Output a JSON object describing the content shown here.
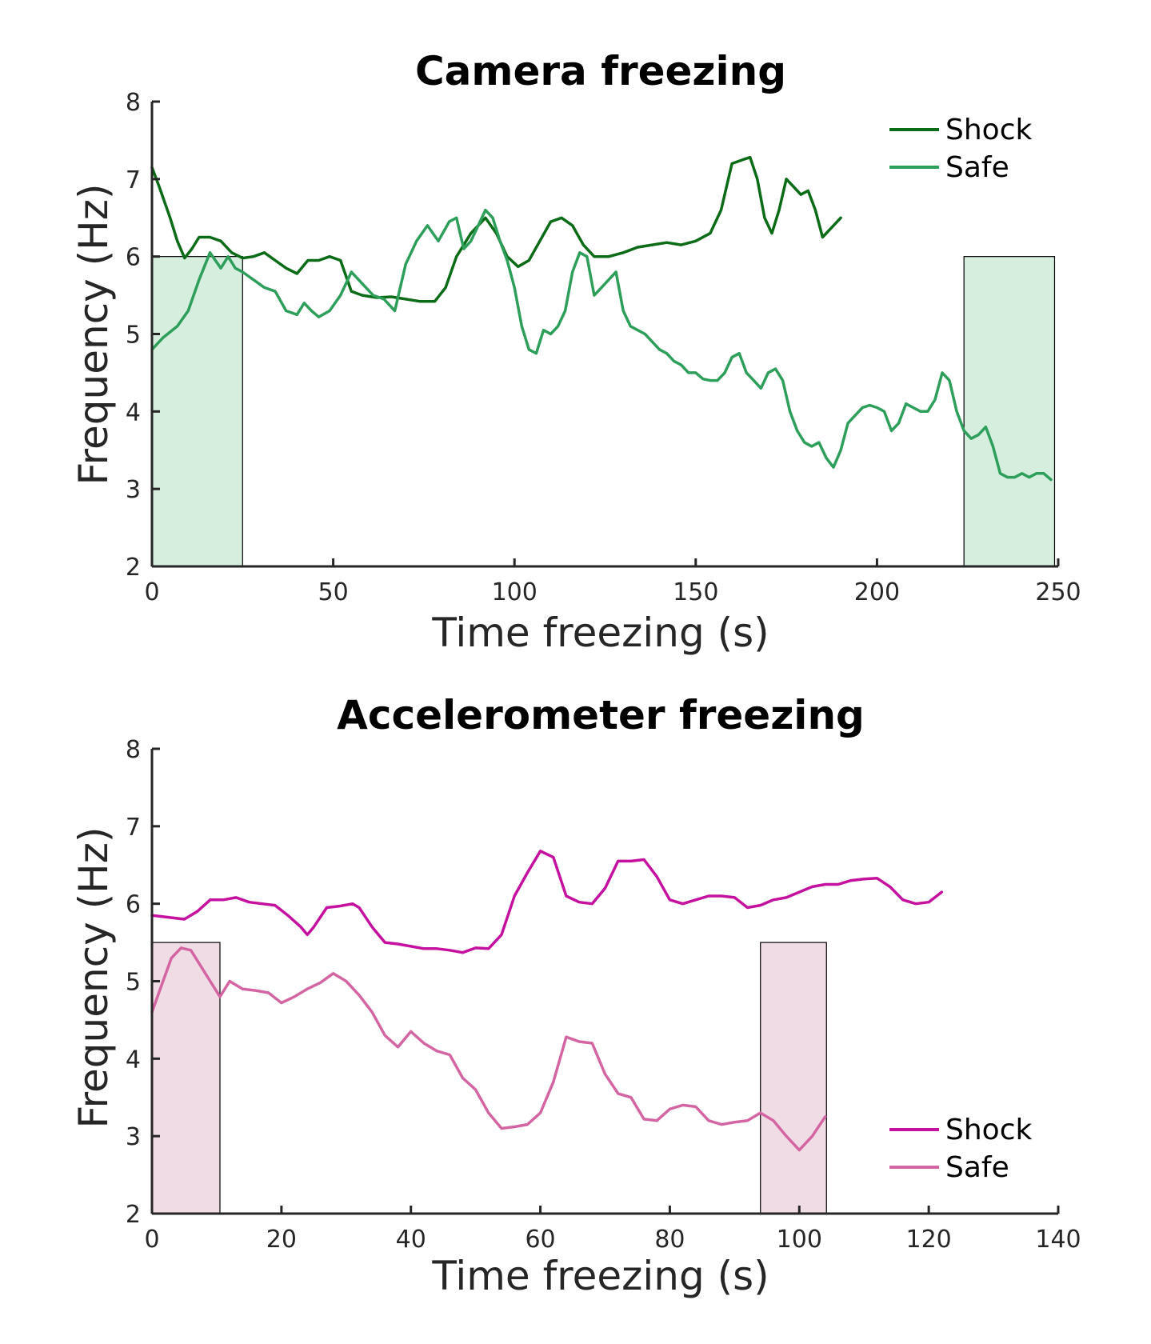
{
  "chart_data": [
    {
      "type": "line",
      "title": "Camera freezing",
      "xlabel": "Time freezing (s)",
      "ylabel": "Frequency (Hz)",
      "xlim": [
        0,
        250
      ],
      "ylim": [
        2,
        8
      ],
      "xticks": [
        0,
        50,
        100,
        150,
        200,
        250
      ],
      "yticks": [
        2,
        3,
        4,
        5,
        6,
        7,
        8
      ],
      "grid": false,
      "legend": "top-right",
      "shaded_regions": [
        {
          "x": [
            0,
            25
          ],
          "y": [
            2,
            6
          ],
          "color": "#d5eede"
        },
        {
          "x": [
            224,
            249
          ],
          "y": [
            2,
            6
          ],
          "color": "#d5eede"
        }
      ],
      "series": [
        {
          "name": "Shock",
          "color": "#0b6b16",
          "x": [
            0,
            2,
            5,
            7,
            9,
            11,
            13,
            16,
            19,
            22,
            25,
            28,
            31,
            34,
            37,
            40,
            43,
            46,
            49,
            52,
            55,
            58,
            62,
            66,
            70,
            74,
            78,
            81,
            84,
            88,
            92,
            95,
            98,
            101,
            104,
            107,
            110,
            113,
            116,
            119,
            122,
            126,
            130,
            134,
            138,
            142,
            146,
            150,
            154,
            157,
            160,
            163,
            165,
            167,
            169,
            171,
            173,
            175,
            177,
            179,
            181,
            183,
            185,
            187,
            190
          ],
          "values": [
            7.15,
            6.9,
            6.5,
            6.2,
            5.98,
            6.1,
            6.25,
            6.25,
            6.2,
            6.05,
            5.98,
            6.0,
            6.05,
            5.95,
            5.85,
            5.78,
            5.95,
            5.95,
            6.0,
            5.95,
            5.55,
            5.5,
            5.47,
            5.48,
            5.45,
            5.42,
            5.42,
            5.6,
            6.0,
            6.3,
            6.5,
            6.3,
            6.0,
            5.87,
            5.95,
            6.2,
            6.45,
            6.5,
            6.4,
            6.15,
            6.0,
            6.0,
            6.05,
            6.12,
            6.15,
            6.18,
            6.15,
            6.2,
            6.3,
            6.6,
            7.2,
            7.25,
            7.28,
            7.0,
            6.5,
            6.3,
            6.6,
            7.0,
            6.9,
            6.8,
            6.85,
            6.6,
            6.25,
            6.35,
            6.5
          ]
        },
        {
          "name": "Safe",
          "color": "#2e9e5b",
          "x": [
            0,
            3,
            7,
            10,
            13,
            16,
            19,
            21,
            23,
            25,
            28,
            31,
            34,
            37,
            40,
            42,
            44,
            46,
            49,
            52,
            55,
            58,
            61,
            64,
            67,
            70,
            73,
            76,
            79,
            82,
            84,
            86,
            88,
            90,
            92,
            94,
            96,
            98,
            100,
            102,
            104,
            106,
            108,
            110,
            112,
            114,
            116,
            118,
            120,
            122,
            124,
            126,
            128,
            130,
            132,
            134,
            136,
            138,
            140,
            142,
            144,
            146,
            148,
            150,
            152,
            154,
            156,
            158,
            160,
            162,
            164,
            166,
            168,
            170,
            172,
            174,
            176,
            178,
            180,
            182,
            184,
            186,
            188,
            190,
            192,
            194,
            196,
            198,
            200,
            202,
            204,
            206,
            208,
            210,
            212,
            214,
            216,
            218,
            220,
            222,
            224,
            226,
            228,
            230,
            232,
            234,
            236,
            238,
            240,
            242,
            244,
            246,
            248
          ],
          "values": [
            4.8,
            4.95,
            5.1,
            5.3,
            5.7,
            6.05,
            5.85,
            6.0,
            5.85,
            5.8,
            5.7,
            5.6,
            5.55,
            5.3,
            5.25,
            5.4,
            5.3,
            5.22,
            5.3,
            5.5,
            5.8,
            5.65,
            5.5,
            5.45,
            5.3,
            5.9,
            6.2,
            6.4,
            6.2,
            6.45,
            6.5,
            6.1,
            6.2,
            6.4,
            6.6,
            6.5,
            6.2,
            5.95,
            5.6,
            5.1,
            4.8,
            4.75,
            5.05,
            5.0,
            5.1,
            5.3,
            5.8,
            6.05,
            6.0,
            5.5,
            5.6,
            5.7,
            5.8,
            5.3,
            5.1,
            5.05,
            5.0,
            4.9,
            4.8,
            4.75,
            4.65,
            4.6,
            4.5,
            4.5,
            4.42,
            4.4,
            4.4,
            4.5,
            4.7,
            4.75,
            4.5,
            4.4,
            4.3,
            4.5,
            4.55,
            4.4,
            4.0,
            3.75,
            3.6,
            3.55,
            3.6,
            3.4,
            3.28,
            3.5,
            3.85,
            3.95,
            4.05,
            4.08,
            4.05,
            4.0,
            3.75,
            3.85,
            4.1,
            4.05,
            4.0,
            4.0,
            4.15,
            4.5,
            4.4,
            4.0,
            3.75,
            3.65,
            3.7,
            3.8,
            3.55,
            3.2,
            3.15,
            3.15,
            3.2,
            3.15,
            3.2,
            3.2,
            3.12
          ]
        }
      ]
    },
    {
      "type": "line",
      "title": "Accelerometer freezing",
      "xlabel": "Time freezing (s)",
      "ylabel": "Frequency (Hz)",
      "xlim": [
        0,
        140
      ],
      "ylim": [
        2,
        8
      ],
      "xticks": [
        0,
        20,
        40,
        60,
        80,
        100,
        120,
        140
      ],
      "yticks": [
        2,
        3,
        4,
        5,
        6,
        7,
        8
      ],
      "grid": false,
      "legend": "bottom-right",
      "shaded_regions": [
        {
          "x": [
            0,
            10.5
          ],
          "y": [
            2,
            5.5
          ],
          "color": "#f0dce5"
        },
        {
          "x": [
            94,
            104.2
          ],
          "y": [
            2,
            5.5
          ],
          "color": "#f0dce5"
        }
      ],
      "series": [
        {
          "name": "Shock",
          "color": "#c4119f",
          "x": [
            0,
            2,
            5,
            7,
            9,
            11,
            13,
            15,
            17,
            19,
            21,
            23,
            24,
            25,
            27,
            29,
            31,
            32,
            34,
            36,
            38,
            40,
            42,
            44,
            46,
            48,
            50,
            52,
            54,
            56,
            58,
            60,
            62,
            64,
            66,
            68,
            70,
            72,
            74,
            76,
            78,
            80,
            82,
            84,
            86,
            88,
            90,
            92,
            94,
            96,
            98,
            100,
            102,
            104,
            106,
            108,
            110,
            112,
            114,
            116,
            118,
            120,
            122
          ],
          "values": [
            5.85,
            5.83,
            5.8,
            5.9,
            6.05,
            6.05,
            6.08,
            6.02,
            6.0,
            5.98,
            5.85,
            5.7,
            5.6,
            5.7,
            5.95,
            5.97,
            6.0,
            5.95,
            5.7,
            5.5,
            5.48,
            5.45,
            5.42,
            5.42,
            5.4,
            5.37,
            5.43,
            5.42,
            5.6,
            6.1,
            6.4,
            6.68,
            6.6,
            6.1,
            6.02,
            6.0,
            6.2,
            6.55,
            6.55,
            6.57,
            6.35,
            6.05,
            6.0,
            6.05,
            6.1,
            6.1,
            6.08,
            5.95,
            5.98,
            6.05,
            6.08,
            6.15,
            6.22,
            6.25,
            6.25,
            6.3,
            6.32,
            6.33,
            6.22,
            6.05,
            6.0,
            6.02,
            6.15
          ]
        },
        {
          "name": "Safe",
          "color": "#d465a3",
          "x": [
            0,
            1.5,
            3,
            4.5,
            6,
            7.5,
            9,
            10.5,
            12,
            14,
            16,
            18,
            20,
            22,
            24,
            26,
            28,
            30,
            32,
            34,
            36,
            38,
            40,
            42,
            44,
            46,
            48,
            50,
            52,
            54,
            56,
            58,
            60,
            62,
            64,
            66,
            68,
            70,
            72,
            74,
            76,
            78,
            80,
            82,
            84,
            86,
            88,
            90,
            92,
            94,
            96,
            98,
            100,
            102,
            104
          ],
          "values": [
            4.6,
            4.95,
            5.3,
            5.43,
            5.4,
            5.2,
            5.0,
            4.8,
            5.0,
            4.9,
            4.88,
            4.85,
            4.72,
            4.8,
            4.9,
            4.98,
            5.1,
            5.0,
            4.82,
            4.6,
            4.3,
            4.15,
            4.35,
            4.2,
            4.1,
            4.05,
            3.75,
            3.6,
            3.3,
            3.1,
            3.12,
            3.15,
            3.3,
            3.7,
            4.28,
            4.22,
            4.2,
            3.8,
            3.55,
            3.5,
            3.22,
            3.2,
            3.35,
            3.4,
            3.38,
            3.2,
            3.15,
            3.18,
            3.2,
            3.3,
            3.2,
            3.0,
            2.82,
            3.0,
            3.25
          ]
        }
      ]
    }
  ]
}
